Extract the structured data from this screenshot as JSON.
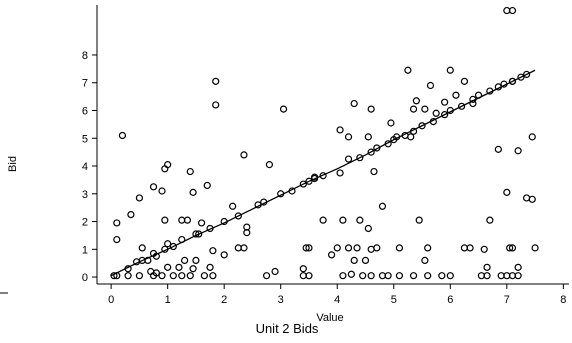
{
  "chart_data": {
    "type": "scatter",
    "title": "Unit 2 Bids",
    "xlabel": "Value",
    "ylabel": "Bid",
    "xlim": [
      -0.25,
      8.1
    ],
    "ylim": [
      -0.25,
      9.8
    ],
    "xticks": [
      0,
      1,
      2,
      3,
      4,
      5,
      6,
      7,
      8
    ],
    "yticks": [
      0,
      1,
      2,
      3,
      4,
      5,
      6,
      7,
      8
    ],
    "grid": false,
    "series": [
      {
        "marker": "open-circle",
        "points": [
          [
            0.05,
            0.05
          ],
          [
            0.1,
            0.05
          ],
          [
            0.3,
            0.05
          ],
          [
            0.5,
            0.05
          ],
          [
            0.75,
            0.05
          ],
          [
            0.9,
            0.05
          ],
          [
            1.1,
            0.05
          ],
          [
            1.25,
            0.05
          ],
          [
            1.4,
            0.05
          ],
          [
            1.65,
            0.05
          ],
          [
            1.8,
            0.05
          ],
          [
            2.75,
            0.05
          ],
          [
            2.9,
            0.2
          ],
          [
            3.4,
            0.05
          ],
          [
            3.5,
            0.05
          ],
          [
            4.1,
            0.05
          ],
          [
            4.25,
            0.1
          ],
          [
            4.45,
            0.05
          ],
          [
            4.6,
            0.05
          ],
          [
            4.8,
            0.05
          ],
          [
            4.9,
            0.05
          ],
          [
            5.1,
            0.05
          ],
          [
            5.35,
            0.05
          ],
          [
            5.6,
            0.05
          ],
          [
            5.85,
            0.05
          ],
          [
            6.0,
            0.05
          ],
          [
            6.55,
            0.05
          ],
          [
            6.65,
            0.05
          ],
          [
            6.9,
            0.05
          ],
          [
            7.0,
            0.05
          ],
          [
            7.1,
            0.05
          ],
          [
            7.2,
            0.05
          ],
          [
            0.3,
            0.3
          ],
          [
            0.45,
            0.55
          ],
          [
            0.55,
            0.6
          ],
          [
            0.65,
            0.6
          ],
          [
            0.7,
            0.2
          ],
          [
            0.8,
            0.15
          ],
          [
            1.0,
            0.35
          ],
          [
            1.2,
            0.35
          ],
          [
            1.3,
            0.6
          ],
          [
            1.45,
            0.3
          ],
          [
            1.5,
            0.6
          ],
          [
            1.75,
            0.35
          ],
          [
            1.8,
            0.95
          ],
          [
            2.0,
            0.8
          ],
          [
            2.25,
            1.05
          ],
          [
            2.35,
            1.05
          ],
          [
            2.4,
            1.6
          ],
          [
            3.4,
            0.3
          ],
          [
            3.45,
            1.05
          ],
          [
            3.5,
            1.05
          ],
          [
            3.9,
            0.8
          ],
          [
            4.0,
            1.05
          ],
          [
            4.2,
            1.05
          ],
          [
            4.3,
            0.6
          ],
          [
            4.35,
            1.05
          ],
          [
            4.5,
            0.6
          ],
          [
            4.6,
            1.0
          ],
          [
            4.7,
            1.05
          ],
          [
            5.1,
            1.05
          ],
          [
            5.55,
            0.6
          ],
          [
            5.6,
            1.05
          ],
          [
            6.25,
            1.05
          ],
          [
            6.35,
            1.05
          ],
          [
            6.6,
            1.0
          ],
          [
            6.65,
            0.35
          ],
          [
            7.05,
            1.05
          ],
          [
            7.1,
            1.05
          ],
          [
            7.2,
            0.35
          ],
          [
            7.5,
            1.05
          ],
          [
            0.1,
            1.95
          ],
          [
            0.1,
            1.35
          ],
          [
            0.2,
            5.1
          ],
          [
            0.35,
            2.25
          ],
          [
            0.5,
            2.85
          ],
          [
            0.55,
            1.05
          ],
          [
            0.75,
            3.25
          ],
          [
            0.8,
            0.75
          ],
          [
            0.9,
            3.1
          ],
          [
            0.95,
            2.05
          ],
          [
            0.95,
            1.0
          ],
          [
            0.95,
            3.9
          ],
          [
            1.0,
            4.05
          ],
          [
            1.1,
            1.1
          ],
          [
            1.25,
            2.05
          ],
          [
            1.35,
            2.05
          ],
          [
            1.55,
            1.55
          ],
          [
            1.6,
            1.95
          ],
          [
            1.4,
            3.8
          ],
          [
            1.45,
            3.05
          ],
          [
            1.7,
            3.3
          ],
          [
            1.85,
            6.2
          ],
          [
            1.85,
            7.05
          ],
          [
            2.15,
            2.55
          ],
          [
            2.35,
            4.4
          ],
          [
            2.4,
            1.8
          ],
          [
            2.8,
            4.05
          ],
          [
            3.05,
            6.05
          ],
          [
            3.6,
            3.6
          ],
          [
            3.75,
            2.05
          ],
          [
            4.05,
            5.3
          ],
          [
            4.1,
            2.05
          ],
          [
            4.2,
            5.05
          ],
          [
            4.3,
            6.25
          ],
          [
            4.4,
            2.05
          ],
          [
            4.55,
            5.05
          ],
          [
            4.55,
            1.75
          ],
          [
            4.6,
            6.05
          ],
          [
            4.65,
            3.8
          ],
          [
            4.8,
            2.55
          ],
          [
            4.95,
            5.55
          ],
          [
            5.05,
            5.05
          ],
          [
            5.25,
            7.45
          ],
          [
            5.3,
            5.05
          ],
          [
            5.35,
            6.05
          ],
          [
            5.4,
            6.35
          ],
          [
            5.45,
            2.05
          ],
          [
            5.55,
            6.05
          ],
          [
            5.65,
            6.9
          ],
          [
            5.75,
            5.9
          ],
          [
            5.9,
            6.3
          ],
          [
            6.0,
            7.45
          ],
          [
            6.1,
            6.55
          ],
          [
            6.25,
            7.05
          ],
          [
            6.4,
            6.25
          ],
          [
            6.7,
            2.05
          ],
          [
            6.85,
            4.6
          ],
          [
            7.0,
            3.05
          ],
          [
            7.1,
            7.05
          ],
          [
            7.2,
            4.55
          ],
          [
            7.35,
            2.85
          ],
          [
            7.45,
            5.05
          ],
          [
            7.45,
            2.8
          ],
          [
            7.0,
            9.6
          ],
          [
            7.1,
            9.6
          ],
          [
            0.75,
            0.85
          ],
          [
            1.0,
            1.2
          ],
          [
            1.25,
            1.35
          ],
          [
            1.5,
            1.55
          ],
          [
            1.75,
            1.75
          ],
          [
            2.0,
            2.0
          ],
          [
            2.25,
            2.2
          ],
          [
            2.6,
            2.6
          ],
          [
            2.7,
            2.7
          ],
          [
            3.0,
            3.0
          ],
          [
            3.2,
            3.1
          ],
          [
            3.4,
            3.35
          ],
          [
            3.5,
            3.45
          ],
          [
            3.6,
            3.55
          ],
          [
            3.75,
            3.65
          ],
          [
            4.05,
            3.75
          ],
          [
            4.2,
            4.25
          ],
          [
            4.4,
            4.3
          ],
          [
            4.6,
            4.5
          ],
          [
            4.7,
            4.65
          ],
          [
            4.9,
            4.8
          ],
          [
            5.0,
            4.95
          ],
          [
            5.2,
            5.1
          ],
          [
            5.35,
            5.25
          ],
          [
            5.5,
            5.45
          ],
          [
            5.7,
            5.6
          ],
          [
            5.9,
            5.85
          ],
          [
            6.0,
            6.0
          ],
          [
            6.2,
            6.15
          ],
          [
            6.4,
            6.4
          ],
          [
            6.5,
            6.55
          ],
          [
            6.7,
            6.7
          ],
          [
            6.85,
            6.85
          ],
          [
            6.95,
            6.95
          ],
          [
            7.1,
            7.05
          ],
          [
            7.25,
            7.2
          ],
          [
            7.35,
            7.3
          ]
        ]
      }
    ],
    "fit_line": [
      [
        0.0,
        0.05
      ],
      [
        0.5,
        0.55
      ],
      [
        1.0,
        1.0
      ],
      [
        1.5,
        1.5
      ],
      [
        2.0,
        1.95
      ],
      [
        2.5,
        2.45
      ],
      [
        3.0,
        2.95
      ],
      [
        3.5,
        3.45
      ],
      [
        4.0,
        3.9
      ],
      [
        4.5,
        4.4
      ],
      [
        5.0,
        4.95
      ],
      [
        5.5,
        5.45
      ],
      [
        6.0,
        5.95
      ],
      [
        6.5,
        6.45
      ],
      [
        7.0,
        6.95
      ],
      [
        7.5,
        7.45
      ]
    ]
  }
}
